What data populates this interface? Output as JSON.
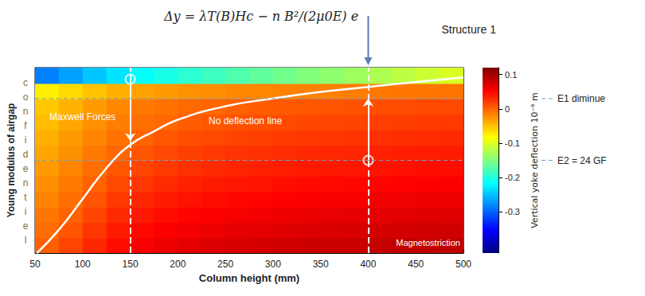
{
  "chart_data": {
    "type": "heatmap",
    "x_label": "Column height (mm)",
    "y_label": "Young modulus of airgap",
    "xlim": [
      50,
      500
    ],
    "xticks": [
      50,
      100,
      150,
      200,
      250,
      300,
      350,
      400,
      450,
      500
    ],
    "ylim": [
      0,
      48
    ],
    "yticks": [
      0,
      8,
      16,
      24,
      32,
      40,
      48
    ],
    "tick_labels": "x",
    "grid": true,
    "x_bins": [
      50,
      75,
      100,
      125,
      150,
      175,
      200,
      225,
      250,
      275,
      300,
      325,
      350,
      375,
      400,
      425,
      450,
      475,
      500
    ],
    "y_bins": [
      0,
      4,
      8,
      12,
      16,
      20,
      24,
      28,
      32,
      36,
      40,
      44,
      48
    ],
    "cells": [
      [
        0.002,
        0.016,
        0.032,
        0.046,
        0.056,
        0.062,
        0.067,
        0.07,
        0.073,
        0.075,
        0.077,
        0.079,
        0.08,
        0.081,
        0.083,
        0.084,
        0.085,
        0.086
      ],
      [
        -0.005,
        0.008,
        0.024,
        0.038,
        0.048,
        0.054,
        0.059,
        0.062,
        0.065,
        0.067,
        0.069,
        0.071,
        0.072,
        0.073,
        0.075,
        0.076,
        0.077,
        0.078
      ],
      [
        -0.011,
        0,
        0.016,
        0.03,
        0.04,
        0.046,
        0.051,
        0.054,
        0.057,
        0.059,
        0.061,
        0.063,
        0.064,
        0.065,
        0.067,
        0.068,
        0.069,
        0.07
      ],
      [
        -0.017,
        -0.006,
        0.008,
        0.022,
        0.032,
        0.038,
        0.043,
        0.046,
        0.049,
        0.051,
        0.053,
        0.055,
        0.056,
        0.057,
        0.059,
        0.06,
        0.061,
        0.062
      ],
      [
        -0.023,
        -0.012,
        0,
        0.014,
        0.024,
        0.03,
        0.035,
        0.038,
        0.041,
        0.043,
        0.045,
        0.047,
        0.048,
        0.049,
        0.051,
        0.052,
        0.053,
        0.054
      ],
      [
        -0.029,
        -0.018,
        -0.006,
        0.006,
        0.016,
        0.022,
        0.027,
        0.03,
        0.033,
        0.035,
        0.037,
        0.039,
        0.04,
        0.041,
        0.043,
        0.044,
        0.045,
        0.046
      ],
      [
        -0.035,
        -0.024,
        -0.012,
        -0.002,
        0.008,
        0.014,
        0.019,
        0.022,
        0.025,
        0.027,
        0.029,
        0.031,
        0.032,
        0.033,
        0.035,
        0.036,
        0.037,
        0.038
      ],
      [
        -0.041,
        -0.03,
        -0.018,
        -0.008,
        0,
        0.006,
        0.011,
        0.014,
        0.017,
        0.019,
        0.021,
        0.023,
        0.024,
        0.025,
        0.027,
        0.028,
        0.029,
        0.03
      ],
      [
        -0.047,
        -0.036,
        -0.024,
        -0.014,
        -0.006,
        -0.002,
        0.003,
        0.006,
        0.009,
        0.011,
        0.013,
        0.015,
        0.016,
        0.017,
        0.019,
        0.02,
        0.021,
        0.022
      ],
      [
        -0.053,
        -0.042,
        -0.03,
        -0.02,
        -0.012,
        -0.008,
        -0.004,
        -0.002,
        0.001,
        0.003,
        0.005,
        0.007,
        0.008,
        0.009,
        0.011,
        0.012,
        0.013,
        0.014
      ],
      [
        -0.074,
        -0.063,
        -0.051,
        -0.041,
        -0.033,
        -0.029,
        -0.025,
        -0.023,
        -0.02,
        -0.019,
        -0.017,
        -0.016,
        -0.015,
        -0.014,
        -0.012,
        -0.011,
        -0.01,
        -0.009
      ],
      [
        -0.285,
        -0.267,
        -0.248,
        -0.231,
        -0.216,
        -0.205,
        -0.194,
        -0.185,
        -0.175,
        -0.166,
        -0.157,
        -0.149,
        -0.141,
        -0.133,
        -0.125,
        -0.117,
        -0.109,
        -0.101
      ]
    ],
    "colorbar": {
      "label": "Vertical yoke deflection 10⁻⁶ m",
      "range": [
        -0.42,
        0.12
      ],
      "ticks": [
        -0.3,
        -0.2,
        -0.1,
        0,
        0.1
      ]
    },
    "no_deflection_line": {
      "label": "No deflection line",
      "x": [
        52,
        75,
        100,
        125,
        150,
        175,
        200,
        250,
        300,
        350,
        400,
        450,
        500
      ],
      "y": [
        0,
        6,
        14,
        22,
        28,
        31.5,
        34.5,
        38,
        40,
        41.7,
        43,
        44.3,
        45.5
      ]
    },
    "cases": [
      {
        "x": 150,
        "y_from": 45,
        "y_to": 29
      },
      {
        "x": 400,
        "y_from": 24,
        "y_to": 40
      }
    ],
    "reference_lines": [
      {
        "y": 40,
        "label": "E1 diminue"
      },
      {
        "y": 24,
        "label": "E2 = 24 GF"
      }
    ],
    "structure": {
      "label": "Structure 1",
      "x": 400
    },
    "annotations": {
      "formula": "Δy = λT(B)Hc − n B²/(2μ0E) e",
      "maxwell": "Maxwell Forces",
      "magnetostriction": "Magnetostriction",
      "watermark": "confidentiel"
    }
  }
}
